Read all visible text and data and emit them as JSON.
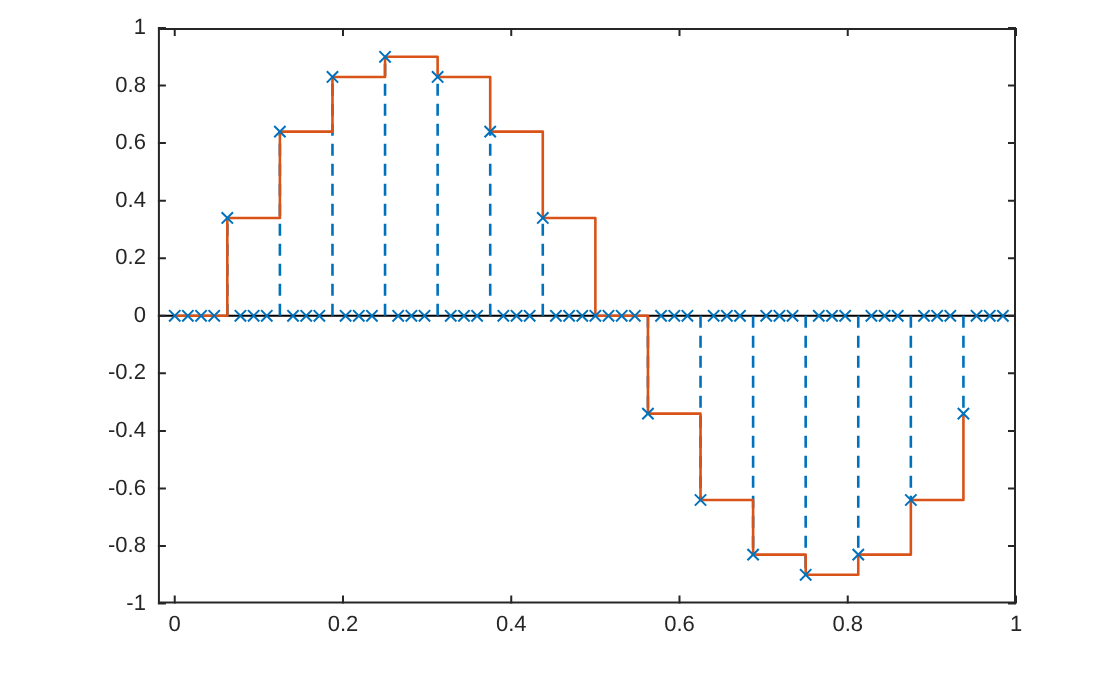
{
  "chart_data": {
    "type": "line",
    "xlim": [
      -0.02,
      1
    ],
    "ylim": [
      -1,
      1
    ],
    "xticks": [
      0,
      0.2,
      0.4,
      0.6,
      0.8,
      1
    ],
    "yticks": [
      -1,
      -0.8,
      -0.6,
      -0.4,
      -0.2,
      0,
      0.2,
      0.4,
      0.6,
      0.8,
      1
    ],
    "grid": false,
    "legend": false,
    "ref_lines": [
      {
        "axis": "y",
        "value": 0,
        "color": "#000000"
      }
    ],
    "series": [
      {
        "type": "step",
        "color": "#d95319",
        "marker": "none",
        "line_style": "solid",
        "x": [
          0,
          0.0625,
          0.125,
          0.1875,
          0.25,
          0.3125,
          0.375,
          0.4375,
          0.5,
          0.5625,
          0.625,
          0.6875,
          0.75,
          0.8125,
          0.875,
          0.9375
        ],
        "values": [
          0,
          0.34,
          0.64,
          0.83,
          0.9,
          0.83,
          0.64,
          0.34,
          0,
          -0.34,
          -0.64,
          -0.83,
          -0.9,
          -0.83,
          -0.64,
          -0.34
        ]
      },
      {
        "type": "lollipop",
        "color": "#0072bd",
        "marker": "cross",
        "line_style": "dashed",
        "x": [
          0,
          0.0156,
          0.0313,
          0.0469,
          0.0625,
          0.0781,
          0.0938,
          0.1094,
          0.125,
          0.1406,
          0.1563,
          0.1719,
          0.1875,
          0.2031,
          0.2188,
          0.2344,
          0.25,
          0.2656,
          0.2813,
          0.2969,
          0.3125,
          0.3281,
          0.3438,
          0.3594,
          0.375,
          0.3906,
          0.4063,
          0.4219,
          0.4375,
          0.4531,
          0.4688,
          0.4844,
          0.5,
          0.5156,
          0.5313,
          0.5469,
          0.5625,
          0.5781,
          0.5938,
          0.6094,
          0.625,
          0.6406,
          0.6563,
          0.6719,
          0.6875,
          0.7031,
          0.7188,
          0.7344,
          0.75,
          0.7656,
          0.7813,
          0.7969,
          0.8125,
          0.8281,
          0.8438,
          0.8594,
          0.875,
          0.8906,
          0.9063,
          0.9219,
          0.9375,
          0.9531,
          0.9688,
          0.9844
        ],
        "values": [
          0,
          0,
          0,
          0,
          0.34,
          0,
          0,
          0,
          0.64,
          0,
          0,
          0,
          0.83,
          0,
          0,
          0,
          0.9,
          0,
          0,
          0,
          0.83,
          0,
          0,
          0,
          0.64,
          0,
          0,
          0,
          0.34,
          0,
          0,
          0,
          0,
          0,
          0,
          0,
          -0.34,
          0,
          0,
          0,
          -0.64,
          0,
          0,
          0,
          -0.83,
          0,
          0,
          0,
          -0.9,
          0,
          0,
          0,
          -0.83,
          0,
          0,
          0,
          -0.64,
          0,
          0,
          0,
          -0.34,
          0,
          0,
          0
        ]
      }
    ]
  }
}
